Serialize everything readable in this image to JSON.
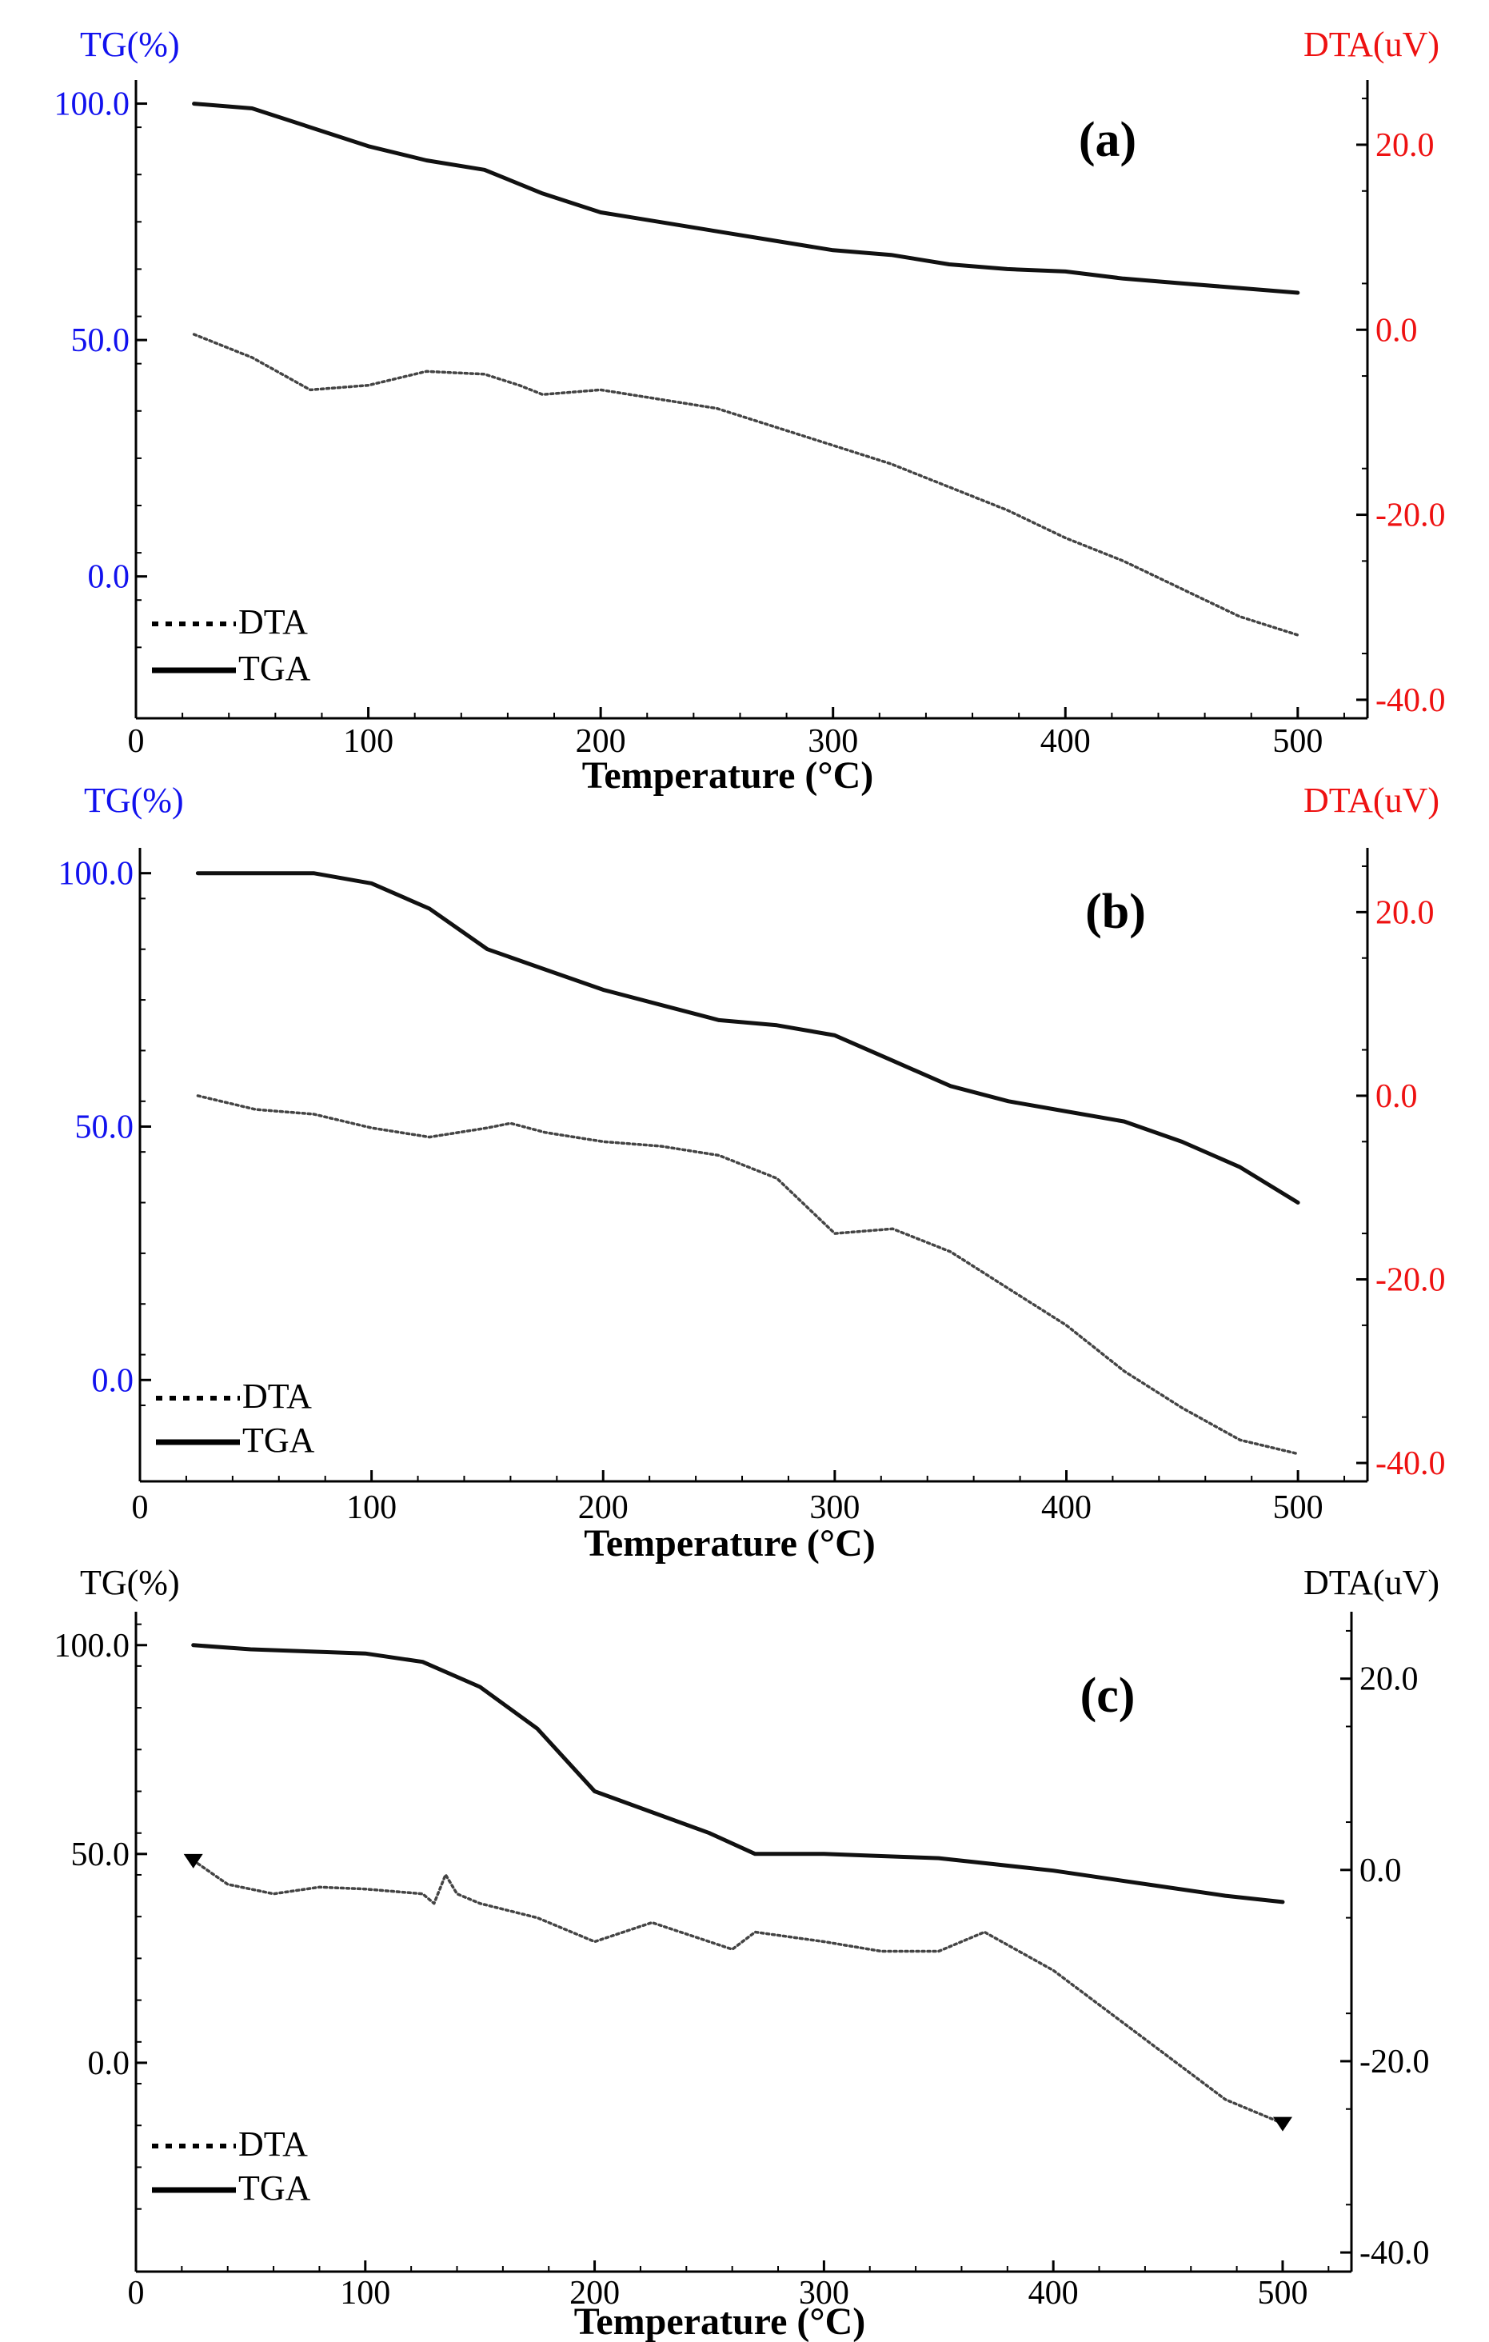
{
  "figure": {
    "colors": {
      "blue": "#1111ee",
      "red": "#ee1111",
      "black": "#000000"
    }
  },
  "chart_data": [
    {
      "type": "line",
      "panel_label": "(a)",
      "left_axis_title": "TG(%)",
      "right_axis_title": "DTA(uV)",
      "left_axis_color": "#1111ee",
      "right_axis_color": "#ee1111",
      "xlabel": "Temperature (°C)",
      "xlim": [
        0,
        530
      ],
      "ylim_left": [
        -30,
        105
      ],
      "ylim_right": [
        -42,
        27
      ],
      "x_ticks": [
        0,
        100,
        200,
        300,
        400,
        500
      ],
      "x_tick_labels": [
        "0",
        "100",
        "200",
        "300",
        "400",
        "500"
      ],
      "y_left_ticks": [
        100,
        50,
        0
      ],
      "y_left_tick_labels": [
        "100.0",
        "50.0",
        "0.0"
      ],
      "y_right_ticks": [
        20,
        0,
        -20,
        -40
      ],
      "y_right_tick_labels": [
        "20.0",
        "0.0",
        "-20.0",
        "-40.0"
      ],
      "legend": [
        {
          "name": "DTA",
          "style": "dotted"
        },
        {
          "name": "TGA",
          "style": "solid"
        }
      ],
      "series": [
        {
          "name": "TGA",
          "axis": "left",
          "style": "solid",
          "x": [
            25,
            50,
            75,
            100,
            125,
            150,
            175,
            200,
            225,
            250,
            275,
            300,
            325,
            350,
            375,
            400,
            425,
            450,
            475,
            500
          ],
          "y": [
            100,
            99,
            95,
            91,
            88,
            86,
            81,
            77,
            75,
            73,
            71,
            69,
            68,
            66,
            65,
            64.5,
            63,
            62,
            61,
            60
          ]
        },
        {
          "name": "DTA",
          "axis": "right",
          "style": "dotted",
          "x": [
            25,
            50,
            75,
            100,
            125,
            150,
            165,
            175,
            200,
            225,
            250,
            275,
            300,
            325,
            350,
            375,
            400,
            425,
            450,
            475,
            500
          ],
          "y": [
            -0.5,
            -3,
            -6.5,
            -6,
            -4.5,
            -4.8,
            -6,
            -7,
            -6.5,
            -7.5,
            -8.5,
            -10.5,
            -12.5,
            -14.5,
            -17,
            -19.5,
            -22.5,
            -25,
            -28,
            -31,
            -33
          ]
        }
      ]
    },
    {
      "type": "line",
      "panel_label": "(b)",
      "left_axis_title": "TG(%)",
      "right_axis_title": "DTA(uV)",
      "left_axis_color": "#1111ee",
      "right_axis_color": "#ee1111",
      "xlabel": "Temperature (°C)",
      "xlim": [
        0,
        530
      ],
      "ylim_left": [
        -20,
        105
      ],
      "ylim_right": [
        -42,
        27
      ],
      "x_ticks": [
        0,
        100,
        200,
        300,
        400,
        500
      ],
      "x_tick_labels": [
        "0",
        "100",
        "200",
        "300",
        "400",
        "500"
      ],
      "y_left_ticks": [
        100,
        50,
        0
      ],
      "y_left_tick_labels": [
        "100.0",
        "50.0",
        "0.0"
      ],
      "y_right_ticks": [
        20,
        0,
        -20,
        -40
      ],
      "y_right_tick_labels": [
        "20.0",
        "0.0",
        "-20.0",
        "-40.0"
      ],
      "legend": [
        {
          "name": "DTA",
          "style": "dotted"
        },
        {
          "name": "TGA",
          "style": "solid"
        }
      ],
      "series": [
        {
          "name": "TGA",
          "axis": "left",
          "style": "solid",
          "x": [
            25,
            50,
            75,
            100,
            125,
            150,
            175,
            200,
            225,
            250,
            275,
            300,
            325,
            350,
            375,
            400,
            425,
            450,
            475,
            500
          ],
          "y": [
            100,
            100,
            100,
            98,
            93,
            85,
            81,
            77,
            74,
            71,
            70,
            68,
            63,
            58,
            55,
            53,
            51,
            47,
            42,
            35
          ]
        },
        {
          "name": "DTA",
          "axis": "right",
          "style": "dotted",
          "x": [
            25,
            50,
            75,
            100,
            125,
            150,
            160,
            175,
            200,
            225,
            250,
            275,
            300,
            325,
            350,
            375,
            400,
            425,
            450,
            475,
            500
          ],
          "y": [
            0,
            -1.5,
            -2,
            -3.5,
            -4.5,
            -3.5,
            -3,
            -4,
            -5,
            -5.5,
            -6.5,
            -9,
            -15,
            -14.5,
            -17,
            -21,
            -25,
            -30,
            -34,
            -37.5,
            -39
          ]
        }
      ]
    },
    {
      "type": "line",
      "panel_label": "(c)",
      "left_axis_title": "TG(%)",
      "right_axis_title": "DTA(uV)",
      "left_axis_color": "#000000",
      "right_axis_color": "#000000",
      "xlabel": "Temperature (°C)",
      "xlim": [
        0,
        530
      ],
      "ylim_left": [
        -50,
        108
      ],
      "ylim_right": [
        -42,
        27
      ],
      "x_ticks": [
        0,
        100,
        200,
        300,
        400,
        500
      ],
      "x_tick_labels": [
        "0",
        "100",
        "200",
        "300",
        "400",
        "500"
      ],
      "y_left_ticks": [
        100,
        50,
        0
      ],
      "y_left_tick_labels": [
        "100.0",
        "50.0",
        "0.0"
      ],
      "y_right_ticks": [
        20,
        0,
        -20,
        -40
      ],
      "y_right_tick_labels": [
        "20.0",
        "0.0",
        "-20.0",
        "-40.0"
      ],
      "legend": [
        {
          "name": "DTA",
          "style": "dotted"
        },
        {
          "name": "TGA",
          "style": "solid"
        }
      ],
      "series": [
        {
          "name": "TGA",
          "axis": "left",
          "style": "solid",
          "x": [
            25,
            50,
            75,
            100,
            125,
            150,
            175,
            200,
            225,
            250,
            270,
            300,
            325,
            350,
            375,
            400,
            425,
            450,
            475,
            500
          ],
          "y": [
            100,
            99,
            98.5,
            98,
            96,
            90,
            80,
            65,
            60,
            55,
            50,
            50,
            49.5,
            49,
            47.5,
            46,
            44,
            42,
            40,
            38.5
          ]
        },
        {
          "name": "DTA",
          "axis": "right",
          "style": "dotted",
          "x": [
            25,
            40,
            60,
            80,
            100,
            125,
            130,
            135,
            140,
            150,
            175,
            200,
            225,
            250,
            260,
            270,
            300,
            325,
            350,
            370,
            400,
            425,
            450,
            475,
            500
          ],
          "y": [
            1,
            -1.5,
            -2.5,
            -1.8,
            -2,
            -2.5,
            -3.5,
            -0.5,
            -2.5,
            -3.5,
            -5,
            -7.5,
            -5.5,
            -7.5,
            -8.3,
            -6.5,
            -7.5,
            -8.5,
            -8.5,
            -6.5,
            -10.5,
            -15,
            -19.5,
            -24,
            -26.5
          ]
        }
      ]
    }
  ]
}
